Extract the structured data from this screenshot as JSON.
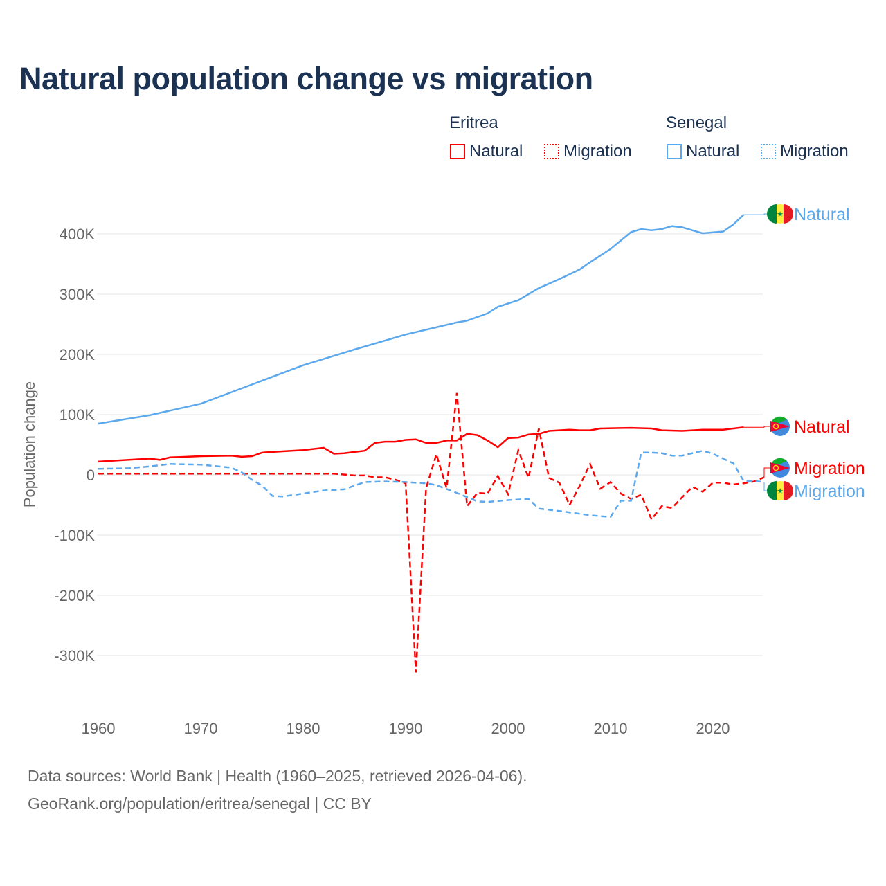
{
  "title": "Natural population change vs migration",
  "legend": {
    "groups": [
      {
        "label": "Eritrea",
        "color": "#ff0000",
        "items": [
          "Natural",
          "Migration"
        ]
      },
      {
        "label": "Senegal",
        "color": "#5ca8ec",
        "items": [
          "Natural",
          "Migration"
        ]
      }
    ]
  },
  "footer": {
    "line1": "Data sources: World Bank | Health (1960–2025, retrieved 2026-04-06).",
    "line2": "GeoRank.org/population/eritrea/senegal | CC BY"
  },
  "chart_data": {
    "type": "line",
    "title": "Natural population change vs migration",
    "xlabel": "",
    "ylabel": "Population change",
    "xlim": [
      1960,
      2025
    ],
    "ylim": [
      -380,
      470
    ],
    "xticks": [
      1960,
      1970,
      1980,
      1990,
      2000,
      2010,
      2020
    ],
    "yticks": [
      {
        "v": 400,
        "label": "400K"
      },
      {
        "v": 300,
        "label": "300K"
      },
      {
        "v": 200,
        "label": "200K"
      },
      {
        "v": 100,
        "label": "100K"
      },
      {
        "v": 0,
        "label": "0"
      },
      {
        "v": -100,
        "label": "-100K"
      },
      {
        "v": -200,
        "label": "-200K"
      },
      {
        "v": -300,
        "label": "-300K"
      }
    ],
    "units": "thousands",
    "series": [
      {
        "name": "Senegal Natural",
        "label": "Natural",
        "country": "Senegal",
        "color": "#5ca8ec",
        "dash": false,
        "points": [
          [
            1960,
            85
          ],
          [
            1965,
            99
          ],
          [
            1970,
            118
          ],
          [
            1975,
            150
          ],
          [
            1980,
            182
          ],
          [
            1985,
            208
          ],
          [
            1990,
            233
          ],
          [
            1995,
            253
          ],
          [
            1996,
            256
          ],
          [
            1998,
            268
          ],
          [
            1999,
            279
          ],
          [
            2001,
            290
          ],
          [
            2003,
            310
          ],
          [
            2005,
            325
          ],
          [
            2007,
            341
          ],
          [
            2008,
            353
          ],
          [
            2010,
            375
          ],
          [
            2012,
            403
          ],
          [
            2013,
            408
          ],
          [
            2014,
            406
          ],
          [
            2015,
            408
          ],
          [
            2016,
            413
          ],
          [
            2017,
            411
          ],
          [
            2018,
            406
          ],
          [
            2019,
            401
          ],
          [
            2021,
            404
          ],
          [
            2022,
            416
          ],
          [
            2023,
            432
          ]
        ]
      },
      {
        "name": "Eritrea Natural",
        "label": "Natural",
        "country": "Eritrea",
        "color": "#ff0000",
        "dash": false,
        "points": [
          [
            1960,
            22
          ],
          [
            1965,
            27
          ],
          [
            1966,
            25
          ],
          [
            1967,
            29
          ],
          [
            1970,
            31
          ],
          [
            1973,
            32
          ],
          [
            1974,
            30
          ],
          [
            1975,
            31
          ],
          [
            1976,
            37
          ],
          [
            1980,
            41
          ],
          [
            1982,
            45
          ],
          [
            1983,
            35
          ],
          [
            1984,
            36
          ],
          [
            1986,
            40
          ],
          [
            1987,
            53
          ],
          [
            1988,
            55
          ],
          [
            1989,
            55
          ],
          [
            1990,
            58
          ],
          [
            1991,
            59
          ],
          [
            1992,
            53
          ],
          [
            1993,
            53
          ],
          [
            1994,
            57
          ],
          [
            1995,
            57
          ],
          [
            1996,
            68
          ],
          [
            1997,
            66
          ],
          [
            1998,
            57
          ],
          [
            1999,
            46
          ],
          [
            2000,
            61
          ],
          [
            2001,
            62
          ],
          [
            2002,
            67
          ],
          [
            2003,
            68
          ],
          [
            2004,
            73
          ],
          [
            2005,
            74
          ],
          [
            2006,
            75
          ],
          [
            2007,
            74
          ],
          [
            2008,
            74
          ],
          [
            2009,
            77
          ],
          [
            2012,
            78
          ],
          [
            2014,
            77
          ],
          [
            2015,
            74
          ],
          [
            2017,
            73
          ],
          [
            2019,
            75
          ],
          [
            2021,
            75
          ],
          [
            2023,
            79
          ]
        ]
      },
      {
        "name": "Eritrea Migration",
        "label": "Migration",
        "country": "Eritrea",
        "color": "#ff0000",
        "dash": true,
        "points": [
          [
            1960,
            2
          ],
          [
            1983,
            2
          ],
          [
            1985,
            -1
          ],
          [
            1986,
            -1
          ],
          [
            1987,
            -4
          ],
          [
            1988,
            -4
          ],
          [
            1989,
            -8
          ],
          [
            1990,
            -14
          ],
          [
            1991,
            -328
          ],
          [
            1992,
            -22
          ],
          [
            1993,
            34
          ],
          [
            1994,
            -22
          ],
          [
            1995,
            136
          ],
          [
            1996,
            -52
          ],
          [
            1997,
            -30
          ],
          [
            1998,
            -31
          ],
          [
            1999,
            -2
          ],
          [
            2000,
            -32
          ],
          [
            2001,
            41
          ],
          [
            2002,
            -5
          ],
          [
            2003,
            77
          ],
          [
            2004,
            -5
          ],
          [
            2005,
            -13
          ],
          [
            2006,
            -50
          ],
          [
            2007,
            -18
          ],
          [
            2008,
            18
          ],
          [
            2009,
            -23
          ],
          [
            2010,
            -12
          ],
          [
            2011,
            -31
          ],
          [
            2012,
            -40
          ],
          [
            2013,
            -33
          ],
          [
            2014,
            -74
          ],
          [
            2015,
            -52
          ],
          [
            2016,
            -55
          ],
          [
            2017,
            -37
          ],
          [
            2018,
            -20
          ],
          [
            2019,
            -28
          ],
          [
            2020,
            -13
          ],
          [
            2021,
            -13
          ],
          [
            2022,
            -16
          ],
          [
            2023,
            -14
          ],
          [
            2024,
            -11
          ],
          [
            2025,
            -4
          ]
        ]
      },
      {
        "name": "Senegal Migration",
        "label": "Migration",
        "country": "Senegal",
        "color": "#5ca8ec",
        "dash": true,
        "points": [
          [
            1960,
            10
          ],
          [
            1963,
            11
          ],
          [
            1965,
            14
          ],
          [
            1967,
            18
          ],
          [
            1970,
            17
          ],
          [
            1973,
            12
          ],
          [
            1974,
            4
          ],
          [
            1975,
            -8
          ],
          [
            1976,
            -18
          ],
          [
            1977,
            -35
          ],
          [
            1978,
            -36
          ],
          [
            1980,
            -31
          ],
          [
            1982,
            -26
          ],
          [
            1984,
            -24
          ],
          [
            1986,
            -12
          ],
          [
            1988,
            -11
          ],
          [
            1990,
            -12
          ],
          [
            1992,
            -14
          ],
          [
            1993,
            -17
          ],
          [
            1995,
            -30
          ],
          [
            1996,
            -37
          ],
          [
            1997,
            -44
          ],
          [
            1998,
            -45
          ],
          [
            2000,
            -42
          ],
          [
            2002,
            -40
          ],
          [
            2003,
            -56
          ],
          [
            2005,
            -60
          ],
          [
            2008,
            -67
          ],
          [
            2010,
            -70
          ],
          [
            2011,
            -43
          ],
          [
            2012,
            -43
          ],
          [
            2013,
            37
          ],
          [
            2014,
            37
          ],
          [
            2015,
            36
          ],
          [
            2016,
            32
          ],
          [
            2017,
            32
          ],
          [
            2019,
            40
          ],
          [
            2020,
            35
          ],
          [
            2021,
            27
          ],
          [
            2022,
            19
          ],
          [
            2023,
            -10
          ],
          [
            2024,
            -10
          ],
          [
            2025,
            -12
          ]
        ]
      }
    ]
  }
}
